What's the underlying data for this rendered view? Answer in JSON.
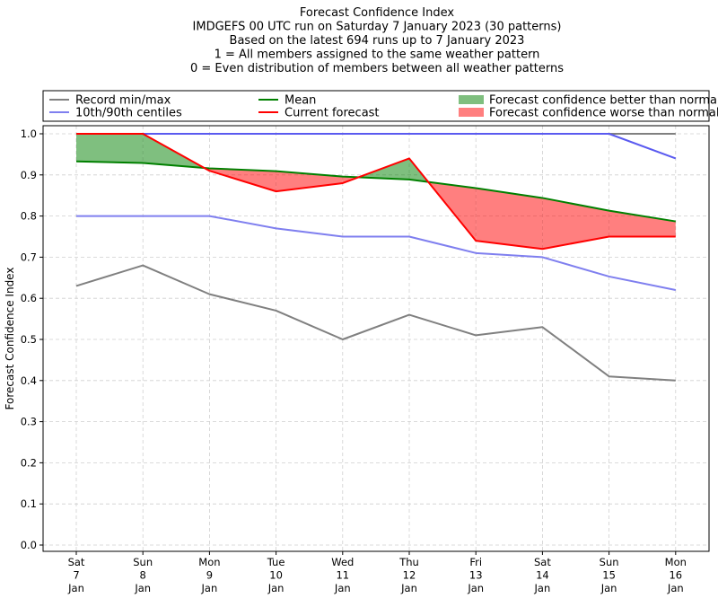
{
  "chart_data": {
    "type": "line",
    "title_lines": [
      "Forecast Confidence Index",
      "IMDGEFS 00 UTC run on Saturday 7 January 2023 (30 patterns)",
      "Based on the latest 694 runs up to 7 January 2023",
      "1 = All members assigned to the same weather pattern",
      "0 = Even distribution of members between all weather patterns"
    ],
    "xlabel": "",
    "ylabel": "Forecast Confidence Index",
    "ylim": [
      0,
      1.0
    ],
    "yticks": [
      "0.0",
      "0.1",
      "0.2",
      "0.3",
      "0.4",
      "0.5",
      "0.6",
      "0.7",
      "0.8",
      "0.9",
      "1.0"
    ],
    "grid": true,
    "legend_position": "top",
    "categories": [
      [
        "Sat",
        "7",
        "Jan"
      ],
      [
        "Sun",
        "8",
        "Jan"
      ],
      [
        "Mon",
        "9",
        "Jan"
      ],
      [
        "Tue",
        "10",
        "Jan"
      ],
      [
        "Wed",
        "11",
        "Jan"
      ],
      [
        "Thu",
        "12",
        "Jan"
      ],
      [
        "Fri",
        "13",
        "Jan"
      ],
      [
        "Sat",
        "14",
        "Jan"
      ],
      [
        "Sun",
        "15",
        "Jan"
      ],
      [
        "Mon",
        "16",
        "Jan"
      ]
    ],
    "series": [
      {
        "key": "record_min",
        "name": "Record min/max",
        "color": "#808080",
        "values": [
          0.63,
          0.68,
          0.61,
          0.57,
          0.5,
          0.56,
          0.51,
          0.53,
          0.41,
          0.4
        ]
      },
      {
        "key": "record_max",
        "color": "#808080",
        "values": [
          1.0,
          1.0,
          1.0,
          1.0,
          1.0,
          1.0,
          1.0,
          1.0,
          1.0,
          1.0
        ]
      },
      {
        "key": "p10",
        "name": "10th/90th centiles",
        "color": "#7f7fef",
        "values": [
          0.8,
          0.8,
          0.8,
          0.77,
          0.75,
          0.75,
          0.71,
          0.7,
          0.653,
          0.62
        ]
      },
      {
        "key": "p90",
        "color": "#5a5af0",
        "values": [
          1.0,
          1.0,
          1.0,
          1.0,
          1.0,
          1.0,
          1.0,
          1.0,
          1.0,
          0.94
        ]
      },
      {
        "key": "mean",
        "name": "Mean",
        "color": "#008000",
        "values": [
          0.933,
          0.929,
          0.916,
          0.909,
          0.896,
          0.889,
          0.868,
          0.844,
          0.813,
          0.787
        ]
      },
      {
        "key": "current",
        "name": "Current forecast",
        "color": "#ff0000",
        "values": [
          1.0,
          1.0,
          0.91,
          0.86,
          0.88,
          0.94,
          0.74,
          0.72,
          0.75,
          0.75
        ]
      }
    ],
    "fills": {
      "better": {
        "label": "Forecast confidence better than normal",
        "color": "#008000",
        "opacity": 0.5
      },
      "worse": {
        "label": "Forecast confidence worse than normal",
        "color": "#ff0000",
        "opacity": 0.5
      }
    }
  }
}
